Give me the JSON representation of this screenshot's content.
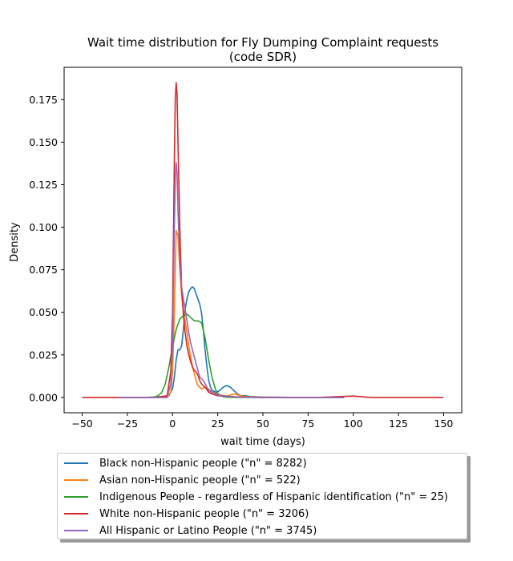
{
  "chart_data": {
    "type": "line",
    "title_line1": "Wait time distribution  for Fly Dumping Complaint requests",
    "title_line2": "(code SDR)",
    "xlabel": "wait time (days)",
    "ylabel": "Density",
    "xlim": [
      -60,
      160
    ],
    "ylim": [
      -0.009,
      0.194
    ],
    "xticks": [
      -50,
      -25,
      0,
      25,
      50,
      75,
      100,
      125,
      150
    ],
    "yticks": [
      0.0,
      0.025,
      0.05,
      0.075,
      0.1,
      0.125,
      0.15,
      0.175
    ],
    "ytick_labels": [
      "0.000",
      "0.025",
      "0.050",
      "0.075",
      "0.100",
      "0.125",
      "0.150",
      "0.175"
    ],
    "grid": false,
    "legend_position": "below",
    "series": [
      {
        "name": "Black non-Hispanic people (\"n\" = 8282)",
        "color": "#1f77b4",
        "x": [
          -30,
          -10,
          -5,
          -2,
          0,
          1,
          2,
          3,
          4,
          5,
          6,
          7,
          8,
          9,
          10,
          11,
          12,
          13,
          14,
          15,
          16,
          17,
          18,
          19,
          20,
          21,
          22,
          24,
          26,
          28,
          30,
          32,
          34,
          36,
          38,
          40,
          43,
          50,
          60,
          70,
          80,
          90,
          95
        ],
        "y": [
          0,
          0,
          0,
          0.001,
          0.005,
          0.012,
          0.022,
          0.028,
          0.028,
          0.03,
          0.04,
          0.052,
          0.058,
          0.062,
          0.064,
          0.065,
          0.064,
          0.061,
          0.058,
          0.055,
          0.05,
          0.04,
          0.028,
          0.018,
          0.01,
          0.006,
          0.004,
          0.003,
          0.004,
          0.006,
          0.007,
          0.006,
          0.004,
          0.002,
          0.001,
          0.001,
          0.0005,
          0.0002,
          0.0001,
          0,
          0,
          0,
          0
        ]
      },
      {
        "name": "Asian non-Hispanic people (\"n\" = 522)",
        "color": "#ff7f0e",
        "x": [
          -30,
          -10,
          -3,
          -1,
          0,
          1,
          2,
          3,
          4,
          5,
          6,
          7,
          8,
          9,
          10,
          11,
          12,
          13,
          14,
          15,
          16,
          18,
          20,
          22,
          25,
          28,
          30,
          32,
          34,
          36,
          38,
          40,
          45,
          55,
          70,
          90
        ],
        "y": [
          0,
          0,
          0,
          0.003,
          0.015,
          0.05,
          0.098,
          0.095,
          0.075,
          0.06,
          0.052,
          0.045,
          0.038,
          0.03,
          0.024,
          0.018,
          0.014,
          0.01,
          0.007,
          0.006,
          0.005,
          0.006,
          0.005,
          0.003,
          0.002,
          0.001,
          0.0005,
          0.0015,
          0.002,
          0.0015,
          0.001,
          0.0005,
          0.0002,
          0.0001,
          0,
          0
        ]
      },
      {
        "name": "Indigenous People - regardless of Hispanic identification (\"n\" = 25)",
        "color": "#2ca02c",
        "x": [
          -30,
          -15,
          -10,
          -8,
          -6,
          -4,
          -2,
          0,
          2,
          4,
          6,
          8,
          10,
          12,
          14,
          16,
          18,
          20,
          22,
          24,
          26,
          28,
          30,
          35,
          40,
          60,
          80,
          95
        ],
        "y": [
          0,
          0,
          0.0003,
          0.001,
          0.003,
          0.008,
          0.018,
          0.03,
          0.04,
          0.046,
          0.048,
          0.049,
          0.047,
          0.045,
          0.045,
          0.044,
          0.035,
          0.022,
          0.011,
          0.004,
          0.001,
          0.0004,
          0.0001,
          0,
          0,
          0,
          0,
          0
        ]
      },
      {
        "name": "White non-Hispanic people (\"n\" = 3206)",
        "color": "#d62728",
        "x": [
          -50,
          -20,
          -10,
          -3,
          -1,
          0,
          1,
          1.5,
          2,
          2.5,
          3,
          4,
          5,
          6,
          7,
          8,
          9,
          10,
          11,
          12,
          13,
          14,
          15,
          16,
          17,
          18,
          20,
          22,
          25,
          28,
          30,
          32,
          35,
          40,
          45,
          50,
          60,
          80,
          100,
          110,
          130,
          150
        ],
        "y": [
          0,
          0,
          0,
          0.001,
          0.015,
          0.05,
          0.14,
          0.175,
          0.185,
          0.178,
          0.15,
          0.1,
          0.065,
          0.048,
          0.038,
          0.03,
          0.025,
          0.021,
          0.018,
          0.016,
          0.015,
          0.013,
          0.01,
          0.008,
          0.007,
          0.006,
          0.003,
          0.002,
          0.001,
          0.001,
          0.0008,
          0.0006,
          0.0004,
          0.0002,
          0.0001,
          0,
          0,
          0,
          0.0008,
          0,
          0,
          0
        ]
      },
      {
        "name": "All Hispanic or Latino People (\"n\" = 3745)",
        "color": "#9467bd",
        "x": [
          -30,
          -10,
          -3,
          -1,
          0,
          1,
          1.5,
          2,
          2.5,
          3,
          4,
          5,
          6,
          7,
          8,
          9,
          10,
          11,
          12,
          13,
          14,
          15,
          16,
          17,
          18,
          19,
          20,
          22,
          24,
          26,
          28,
          30,
          35,
          40,
          50,
          60,
          80,
          95
        ],
        "y": [
          0,
          0,
          0,
          0.008,
          0.03,
          0.1,
          0.128,
          0.138,
          0.132,
          0.11,
          0.08,
          0.065,
          0.058,
          0.052,
          0.045,
          0.038,
          0.032,
          0.028,
          0.024,
          0.02,
          0.016,
          0.012,
          0.011,
          0.01,
          0.008,
          0.006,
          0.004,
          0.003,
          0.002,
          0.001,
          0.0008,
          0.0005,
          0.0003,
          0.0001,
          0,
          0,
          0,
          0
        ]
      }
    ]
  }
}
